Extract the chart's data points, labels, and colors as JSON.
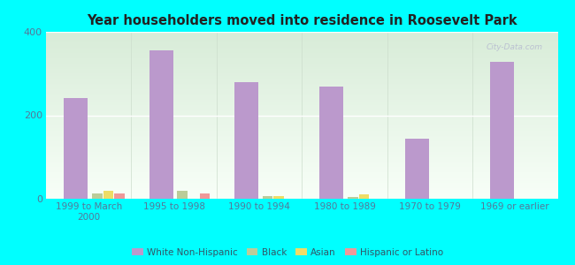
{
  "title": "Year householders moved into residence in Roosevelt Park",
  "categories": [
    "1999 to March\n2000",
    "1995 to 1998",
    "1990 to 1994",
    "1980 to 1989",
    "1970 to 1979",
    "1969 or earlier"
  ],
  "series": {
    "White Non-Hispanic": [
      242,
      355,
      280,
      268,
      143,
      328
    ],
    "Black": [
      13,
      20,
      6,
      4,
      0,
      0
    ],
    "Asian": [
      20,
      0,
      7,
      10,
      0,
      0
    ],
    "Hispanic or Latino": [
      12,
      13,
      0,
      0,
      0,
      0
    ]
  },
  "colors": {
    "White Non-Hispanic": "#bb99cc",
    "Black": "#bbcc99",
    "Asian": "#eedd66",
    "Hispanic or Latino": "#ee9999"
  },
  "ylim": [
    0,
    400
  ],
  "yticks": [
    0,
    200,
    400
  ],
  "background_color": "#00ffff",
  "gradient_top": "#d8ecd8",
  "gradient_bottom": "#f8fff8",
  "watermark": "City-Data.com",
  "bar_width": 0.12,
  "white_bar_width": 0.28
}
